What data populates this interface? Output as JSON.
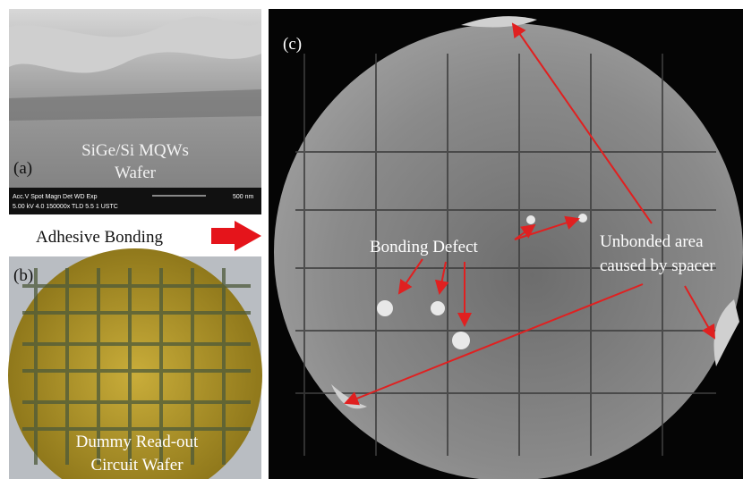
{
  "panel_a": {
    "label": "(a)",
    "caption": [
      "SiGe/Si MQWs",
      "Wafer"
    ],
    "sem_info": {
      "header": "Acc.V Spot Magn Det WD Exp",
      "scale": "500 nm",
      "values": "5.00 kV 4.0 150000x TLD 5.5 1 USTC"
    }
  },
  "process_label": "Adhesive Bonding",
  "panel_b": {
    "label": "(b)",
    "caption": [
      "Dummy Read-out",
      "Circuit Wafer"
    ]
  },
  "panel_c": {
    "label": "(c)",
    "annotations": {
      "defect": "Bonding Defect",
      "unbonded": [
        "Unbonded area",
        "caused by spacer"
      ]
    }
  }
}
